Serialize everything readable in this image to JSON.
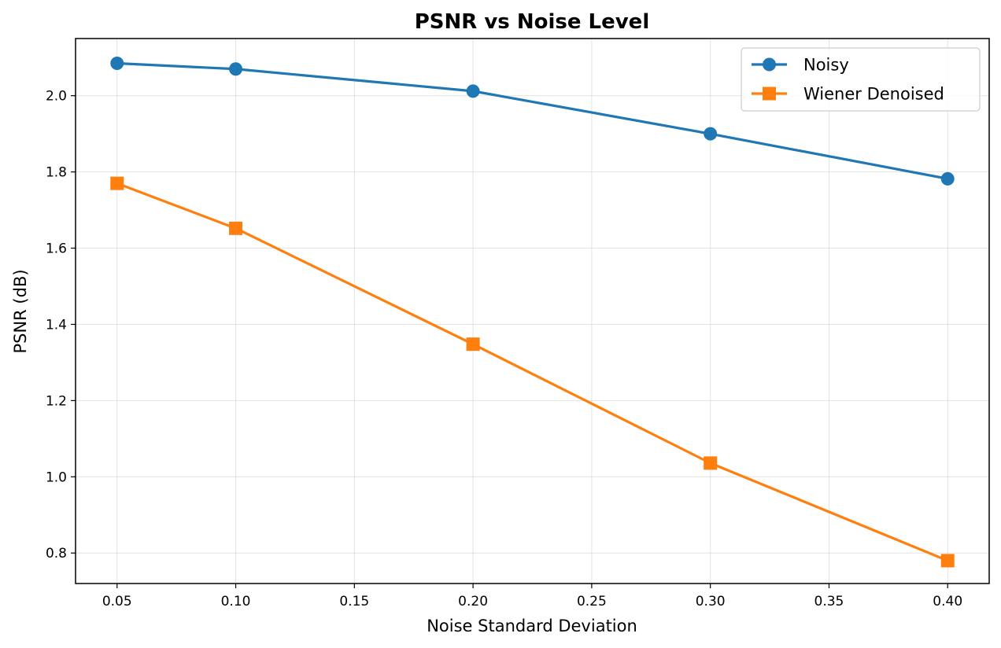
{
  "chart_data": {
    "type": "line",
    "title": "PSNR vs Noise Level",
    "xlabel": "Noise Standard Deviation",
    "ylabel": "PSNR (dB)",
    "xlim": [
      0.0325,
      0.4175
    ],
    "ylim": [
      0.72,
      2.15
    ],
    "xticks": [
      0.05,
      0.1,
      0.15,
      0.2,
      0.25,
      0.3,
      0.35,
      0.4
    ],
    "xtick_labels": [
      "0.05",
      "0.10",
      "0.15",
      "0.20",
      "0.25",
      "0.30",
      "0.35",
      "0.40"
    ],
    "yticks": [
      0.8,
      1.0,
      1.2,
      1.4,
      1.6,
      1.8,
      2.0
    ],
    "ytick_labels": [
      "0.8",
      "1.0",
      "1.2",
      "1.4",
      "1.6",
      "1.8",
      "2.0"
    ],
    "grid": true,
    "legend_position": "top-right",
    "series": [
      {
        "name": "Noisy",
        "color": "#1f77b4",
        "marker": "circle",
        "x": [
          0.05,
          0.1,
          0.2,
          0.3,
          0.4
        ],
        "y": [
          2.085,
          2.07,
          2.012,
          1.9,
          1.782
        ]
      },
      {
        "name": "Wiener Denoised",
        "color": "#ff7f0e",
        "marker": "square",
        "x": [
          0.05,
          0.1,
          0.2,
          0.3,
          0.4
        ],
        "y": [
          1.77,
          1.652,
          1.348,
          1.036,
          0.78
        ]
      }
    ]
  }
}
